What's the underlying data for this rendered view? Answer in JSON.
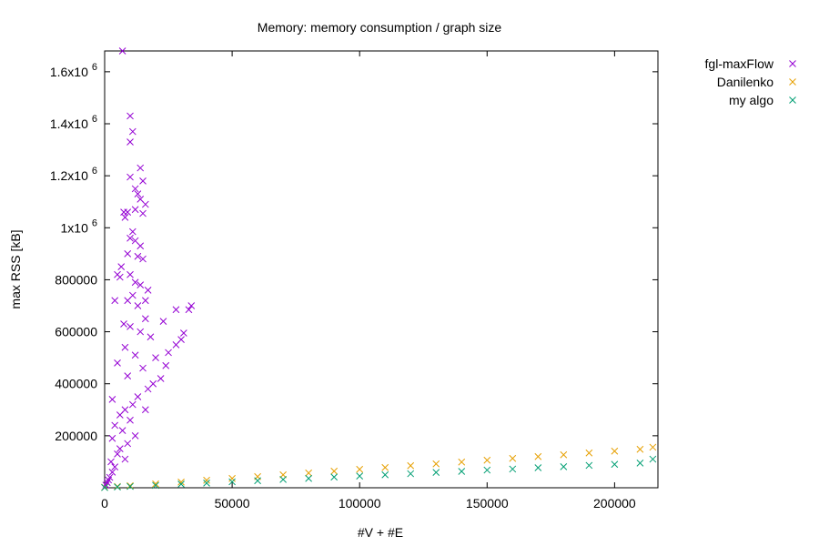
{
  "chart_data": {
    "type": "scatter",
    "title": "Memory: memory consumption / graph size",
    "xlabel": "#V + #E",
    "ylabel": "max RSS [kB]",
    "xlim": [
      0,
      217000
    ],
    "ylim": [
      0,
      1680000
    ],
    "x_ticks": [
      {
        "value": 0,
        "label": "0"
      },
      {
        "value": 50000,
        "label": "50000"
      },
      {
        "value": 100000,
        "label": "100000"
      },
      {
        "value": 150000,
        "label": "150000"
      },
      {
        "value": 200000,
        "label": "200000"
      }
    ],
    "y_ticks": [
      {
        "value": 200000,
        "label": "200000"
      },
      {
        "value": 400000,
        "label": "400000"
      },
      {
        "value": 600000,
        "label": "600000"
      },
      {
        "value": 800000,
        "label": "800000"
      },
      {
        "value": 1000000,
        "label": "1x10",
        "exp": "6"
      },
      {
        "value": 1200000,
        "label": "1.2x10",
        "exp": "6"
      },
      {
        "value": 1400000,
        "label": "1.4x10",
        "exp": "6"
      },
      {
        "value": 1600000,
        "label": "1.6x10",
        "exp": "6"
      }
    ],
    "marker": "x",
    "legend_position": "outside-top-right",
    "series": [
      {
        "name": "fgl-maxFlow",
        "color": "#9400d3",
        "points": [
          [
            7000,
            1680000
          ],
          [
            10000,
            1430000
          ],
          [
            11000,
            1370000
          ],
          [
            10000,
            1330000
          ],
          [
            14000,
            1230000
          ],
          [
            10000,
            1195000
          ],
          [
            15000,
            1180000
          ],
          [
            12000,
            1150000
          ],
          [
            13000,
            1130000
          ],
          [
            14000,
            1110000
          ],
          [
            16000,
            1090000
          ],
          [
            7500,
            1060000
          ],
          [
            9000,
            1060000
          ],
          [
            12000,
            1070000
          ],
          [
            15000,
            1055000
          ],
          [
            8000,
            1040000
          ],
          [
            11000,
            985000
          ],
          [
            10000,
            960000
          ],
          [
            12000,
            950000
          ],
          [
            14000,
            930000
          ],
          [
            9000,
            900000
          ],
          [
            13000,
            890000
          ],
          [
            15000,
            880000
          ],
          [
            6500,
            850000
          ],
          [
            10000,
            820000
          ],
          [
            5000,
            820000
          ],
          [
            6000,
            810000
          ],
          [
            12000,
            790000
          ],
          [
            14000,
            780000
          ],
          [
            17000,
            760000
          ],
          [
            4000,
            720000
          ],
          [
            11000,
            740000
          ],
          [
            9000,
            720000
          ],
          [
            13000,
            700000
          ],
          [
            16000,
            720000
          ],
          [
            28000,
            685000
          ],
          [
            34000,
            700000
          ],
          [
            33000,
            685000
          ],
          [
            7500,
            630000
          ],
          [
            16000,
            650000
          ],
          [
            23000,
            640000
          ],
          [
            10000,
            620000
          ],
          [
            14000,
            600000
          ],
          [
            31000,
            595000
          ],
          [
            18000,
            580000
          ],
          [
            30000,
            570000
          ],
          [
            28000,
            550000
          ],
          [
            8000,
            540000
          ],
          [
            25000,
            520000
          ],
          [
            12000,
            510000
          ],
          [
            20000,
            500000
          ],
          [
            24000,
            470000
          ],
          [
            5000,
            480000
          ],
          [
            15000,
            460000
          ],
          [
            22000,
            420000
          ],
          [
            9000,
            430000
          ],
          [
            19000,
            400000
          ],
          [
            17000,
            380000
          ],
          [
            13000,
            350000
          ],
          [
            3000,
            340000
          ],
          [
            11000,
            320000
          ],
          [
            8000,
            300000
          ],
          [
            16000,
            300000
          ],
          [
            6000,
            280000
          ],
          [
            10000,
            260000
          ],
          [
            4000,
            240000
          ],
          [
            7000,
            220000
          ],
          [
            12000,
            200000
          ],
          [
            3000,
            190000
          ],
          [
            9000,
            170000
          ],
          [
            6000,
            150000
          ],
          [
            5000,
            130000
          ],
          [
            8000,
            110000
          ],
          [
            2500,
            100000
          ],
          [
            4000,
            80000
          ],
          [
            3000,
            60000
          ],
          [
            2000,
            40000
          ],
          [
            1500,
            30000
          ],
          [
            1000,
            20000
          ],
          [
            500,
            10000
          ]
        ]
      },
      {
        "name": "Danilenko",
        "color": "#e69f00",
        "points": [
          [
            0,
            2000
          ],
          [
            5000,
            5000
          ],
          [
            10000,
            8000
          ],
          [
            20000,
            15000
          ],
          [
            30000,
            22000
          ],
          [
            40000,
            29000
          ],
          [
            50000,
            36000
          ],
          [
            60000,
            43000
          ],
          [
            70000,
            50000
          ],
          [
            80000,
            57000
          ],
          [
            90000,
            64000
          ],
          [
            100000,
            71000
          ],
          [
            110000,
            78000
          ],
          [
            120000,
            85000
          ],
          [
            130000,
            92000
          ],
          [
            140000,
            99000
          ],
          [
            150000,
            106000
          ],
          [
            160000,
            113000
          ],
          [
            170000,
            120000
          ],
          [
            180000,
            127000
          ],
          [
            190000,
            134000
          ],
          [
            200000,
            141000
          ],
          [
            210000,
            148000
          ],
          [
            215000,
            156000
          ]
        ]
      },
      {
        "name": "my algo",
        "color": "#009e73",
        "points": [
          [
            0,
            1000
          ],
          [
            5000,
            3000
          ],
          [
            10000,
            5000
          ],
          [
            20000,
            9000
          ],
          [
            30000,
            14000
          ],
          [
            40000,
            18000
          ],
          [
            50000,
            23000
          ],
          [
            60000,
            27000
          ],
          [
            70000,
            32000
          ],
          [
            80000,
            36000
          ],
          [
            90000,
            41000
          ],
          [
            100000,
            45000
          ],
          [
            110000,
            50000
          ],
          [
            120000,
            54000
          ],
          [
            130000,
            59000
          ],
          [
            140000,
            63000
          ],
          [
            150000,
            68000
          ],
          [
            160000,
            72000
          ],
          [
            170000,
            77000
          ],
          [
            180000,
            81000
          ],
          [
            190000,
            86000
          ],
          [
            200000,
            90000
          ],
          [
            210000,
            95000
          ],
          [
            215000,
            110000
          ]
        ]
      }
    ]
  }
}
